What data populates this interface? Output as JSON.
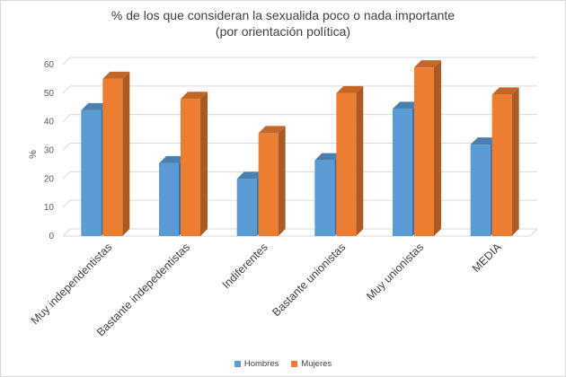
{
  "chart_data": {
    "type": "bar",
    "title_line1": "% de los que consideran la sexualida poco o nada importante",
    "title_line2": "(por orientación política)",
    "xlabel": "",
    "ylabel": "%",
    "ylim": [
      0,
      60
    ],
    "yticks": [
      0,
      10,
      20,
      30,
      40,
      50,
      60
    ],
    "grid": true,
    "legend_position": "bottom",
    "categories": [
      "Muy independentistas",
      "Bastante indepedentistas",
      "Indiferentes",
      "Bastante unionistas",
      "Muy unionistas",
      "MEDIA"
    ],
    "series": [
      {
        "name": "Hombres",
        "color": "#5b9bd5",
        "values": [
          44,
          25.5,
          20,
          26.5,
          44.5,
          32
        ]
      },
      {
        "name": "Mujeres",
        "color": "#ed7d31",
        "values": [
          55,
          48,
          36,
          50,
          59,
          49.5
        ]
      }
    ]
  }
}
